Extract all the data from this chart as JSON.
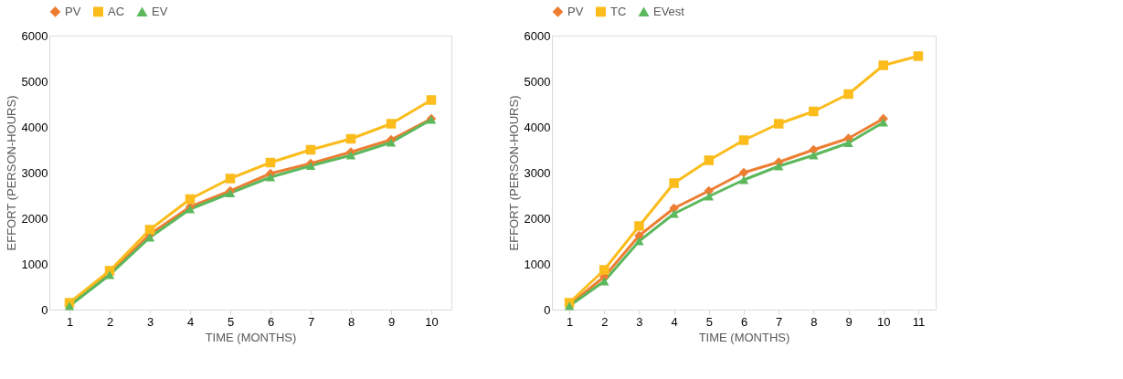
{
  "chart_data": [
    {
      "type": "line",
      "xlabel": "TIME (MONTHS)",
      "ylabel": "EFFORT (PERSON-HOURS)",
      "categories": [
        "1",
        "2",
        "3",
        "4",
        "5",
        "6",
        "7",
        "8",
        "9",
        "10"
      ],
      "ylim": [
        0,
        6000
      ],
      "yticks": [
        0,
        1000,
        2000,
        3000,
        4000,
        5000,
        6000
      ],
      "grid": false,
      "legend": "top",
      "line_style": "solid",
      "series": [
        {
          "name": "PV",
          "color": "#ed7d31",
          "marker": "diamond",
          "values": [
            100,
            800,
            1650,
            2250,
            2600,
            2980,
            3200,
            3450,
            3720,
            4180
          ]
        },
        {
          "name": "AC",
          "color": "#fbbc1c",
          "marker": "square",
          "values": [
            150,
            850,
            1750,
            2420,
            2870,
            3220,
            3500,
            3740,
            4070,
            4590
          ]
        },
        {
          "name": "EV",
          "color": "#5cb85c",
          "marker": "triangle",
          "values": [
            80,
            760,
            1580,
            2200,
            2550,
            2900,
            3150,
            3380,
            3660,
            4160
          ]
        }
      ]
    },
    {
      "type": "line",
      "xlabel": "TIME (MONTHS)",
      "ylabel": "EFFORT (PERSON-HOURS)",
      "categories": [
        "1",
        "2",
        "3",
        "4",
        "5",
        "6",
        "7",
        "8",
        "9",
        "10",
        "11"
      ],
      "ylim": [
        0,
        6000
      ],
      "yticks": [
        0,
        1000,
        2000,
        3000,
        4000,
        5000,
        6000
      ],
      "grid": false,
      "legend": "top",
      "line_style": "solid",
      "series": [
        {
          "name": "PV",
          "color": "#ed7d31",
          "marker": "diamond",
          "values": [
            100,
            720,
            1620,
            2220,
            2600,
            3000,
            3230,
            3500,
            3750,
            4180,
            null
          ]
        },
        {
          "name": "TC",
          "color": "#fbbc1c",
          "marker": "square",
          "values": [
            150,
            870,
            1830,
            2770,
            3270,
            3710,
            4070,
            4340,
            4720,
            5350,
            5550
          ]
        },
        {
          "name": "EVest",
          "color": "#5cb85c",
          "marker": "triangle",
          "values": [
            80,
            620,
            1500,
            2100,
            2480,
            2840,
            3140,
            3380,
            3650,
            4100,
            null
          ]
        }
      ]
    }
  ]
}
